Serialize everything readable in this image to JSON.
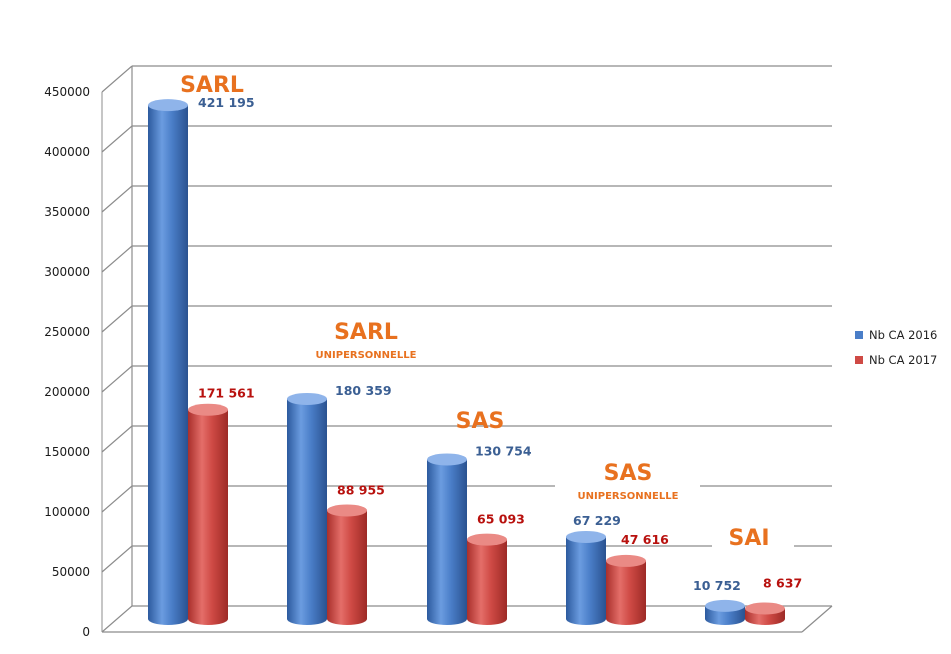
{
  "colors": {
    "series_2016": "#4a7ec8",
    "series_2017": "#cf4a45",
    "label_2016": "#3b5f93",
    "label_2017": "#b8110e",
    "category": "#e8711f",
    "grid": "#8c8c8c"
  },
  "chart_data": {
    "type": "bar",
    "style": "3d-cylinder",
    "categories": [
      {
        "main": "SARL",
        "sub": ""
      },
      {
        "main": "SARL",
        "sub": "UNIPERSONNELLE"
      },
      {
        "main": "SAS",
        "sub": ""
      },
      {
        "main": "SAS",
        "sub": "UNIPERSONNELLE"
      },
      {
        "main": "SAI",
        "sub": ""
      }
    ],
    "series": [
      {
        "name": "Nb CA 2016",
        "values": [
          421195,
          180359,
          130754,
          67229,
          10752
        ],
        "labels": [
          "421 195",
          "180 359",
          "130 754",
          "67 229",
          "10 752"
        ]
      },
      {
        "name": "Nb CA 2017",
        "values": [
          171561,
          88955,
          65093,
          47616,
          8637
        ],
        "labels": [
          "171 561",
          "88 955",
          "65 093",
          "47 616",
          "8 637"
        ]
      }
    ],
    "yticks": [
      "0",
      "50000",
      "100000",
      "150000",
      "200000",
      "250000",
      "300000",
      "350000",
      "400000",
      "450000"
    ],
    "ylim": [
      0,
      450000
    ],
    "grid": true,
    "legend_position": "right"
  }
}
